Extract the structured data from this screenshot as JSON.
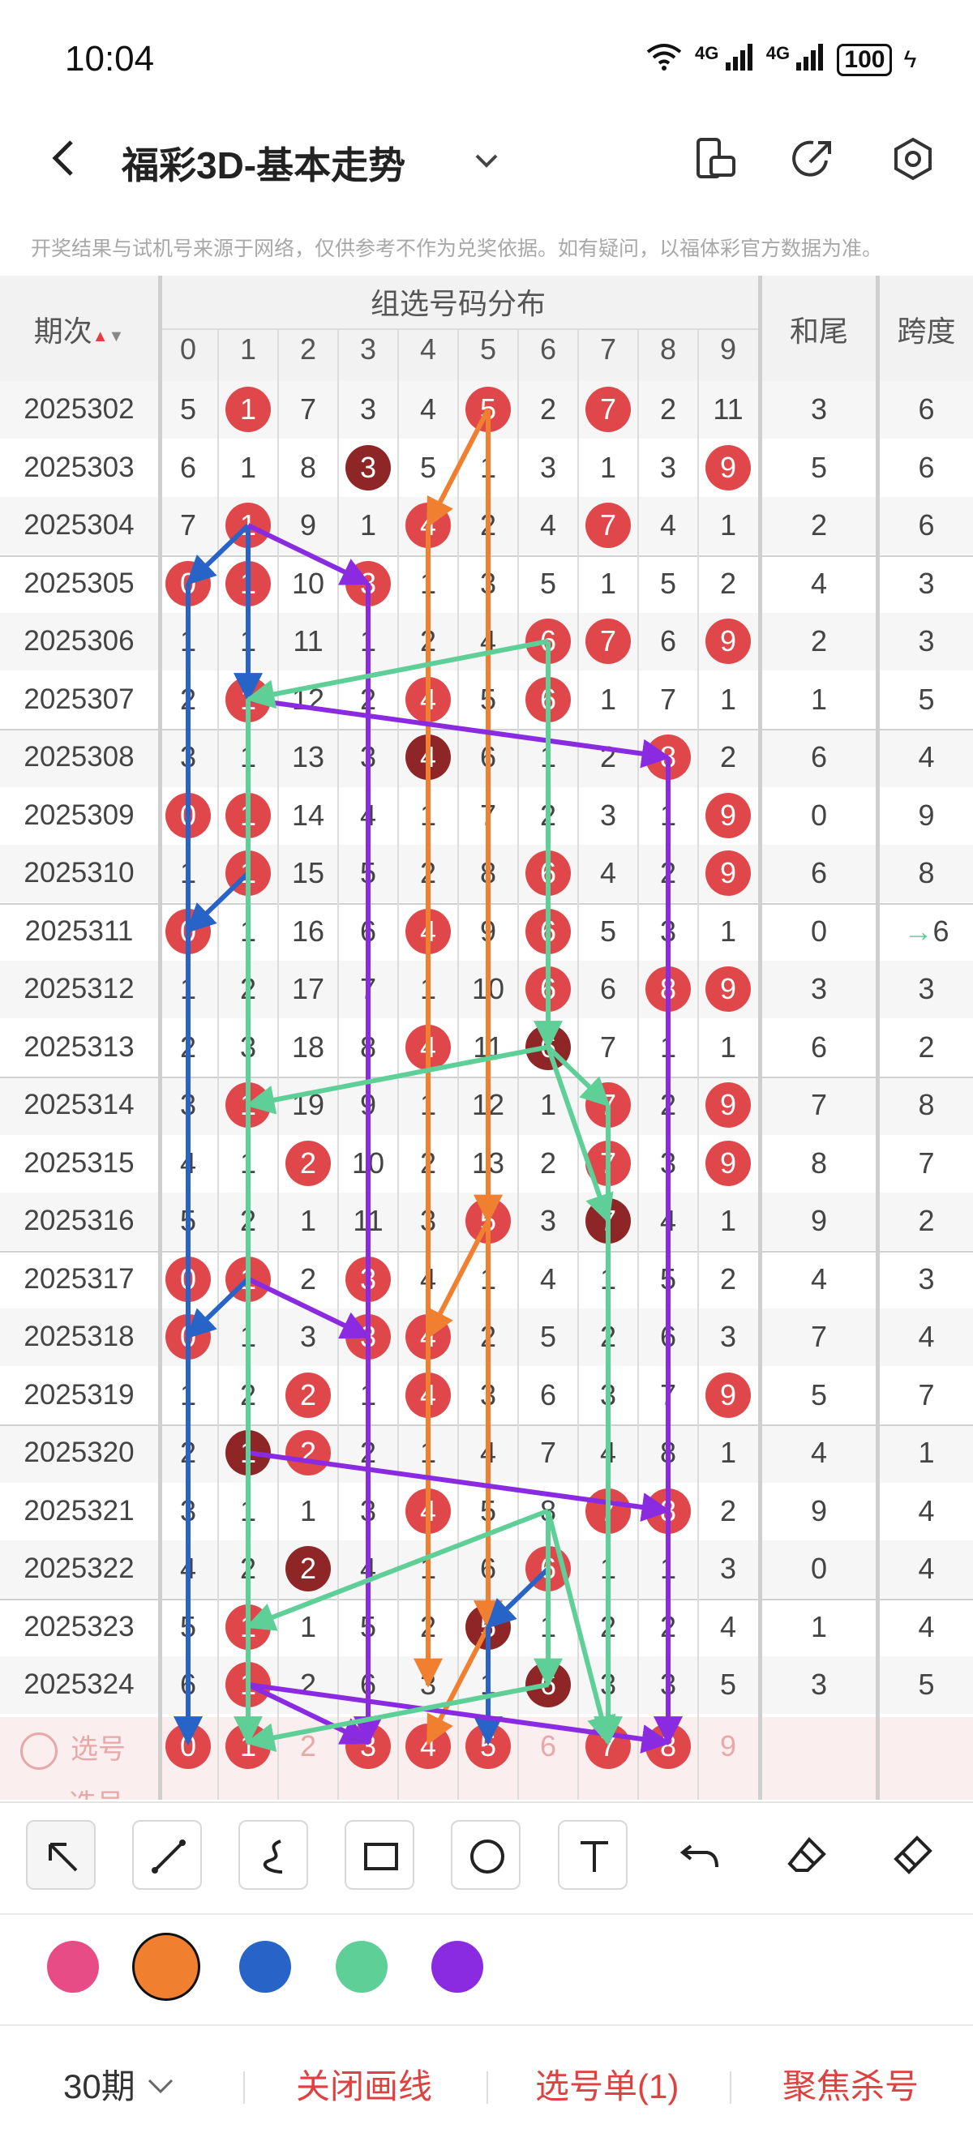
{
  "status": {
    "time": "10:04",
    "network": "4G",
    "battery": "100"
  },
  "header": {
    "title": "福彩3D-基本走势"
  },
  "disclaimer": "开奖结果与试机号来源于网络，仅供参考不作为兑奖依据。如有疑问，以福体彩官方数据为准。",
  "table": {
    "col_issue": "期次",
    "group_title": "组选号码分布",
    "digits": [
      "0",
      "1",
      "2",
      "3",
      "4",
      "5",
      "6",
      "7",
      "8",
      "9"
    ],
    "col_sum": "和尾",
    "col_span": "跨度",
    "rows": [
      {
        "issue": "2025302",
        "cells": [
          "5",
          "1",
          "7",
          "3",
          "4",
          "5",
          "2",
          "7",
          "2",
          "11"
        ],
        "hits": [
          1,
          5,
          7
        ],
        "dark": [],
        "sum": "3",
        "span": "6"
      },
      {
        "issue": "2025303",
        "cells": [
          "6",
          "1",
          "8",
          "3",
          "5",
          "1",
          "3",
          "1",
          "3",
          "9"
        ],
        "hits": [
          9
        ],
        "dark": [
          3
        ],
        "sum": "5",
        "span": "6"
      },
      {
        "issue": "2025304",
        "cells": [
          "7",
          "1",
          "9",
          "1",
          "4",
          "2",
          "4",
          "7",
          "4",
          "1"
        ],
        "hits": [
          1,
          4,
          7
        ],
        "dark": [],
        "sum": "2",
        "span": "6"
      },
      {
        "issue": "2025305",
        "cells": [
          "0",
          "1",
          "10",
          "3",
          "1",
          "3",
          "5",
          "1",
          "5",
          "2"
        ],
        "hits": [
          0,
          1,
          3
        ],
        "dark": [],
        "sum": "4",
        "span": "3"
      },
      {
        "issue": "2025306",
        "cells": [
          "1",
          "1",
          "11",
          "1",
          "2",
          "4",
          "6",
          "7",
          "6",
          "9"
        ],
        "hits": [
          6,
          7,
          9
        ],
        "dark": [],
        "sum": "2",
        "span": "3"
      },
      {
        "issue": "2025307",
        "cells": [
          "2",
          "1",
          "12",
          "2",
          "4",
          "5",
          "6",
          "1",
          "7",
          "1"
        ],
        "hits": [
          1,
          4,
          6
        ],
        "dark": [],
        "sum": "1",
        "span": "5"
      },
      {
        "issue": "2025308",
        "cells": [
          "3",
          "1",
          "13",
          "3",
          "4",
          "6",
          "1",
          "2",
          "8",
          "2"
        ],
        "hits": [
          8
        ],
        "dark": [
          4
        ],
        "sum": "6",
        "span": "4"
      },
      {
        "issue": "2025309",
        "cells": [
          "0",
          "1",
          "14",
          "4",
          "1",
          "7",
          "2",
          "3",
          "1",
          "9"
        ],
        "hits": [
          0,
          1,
          9
        ],
        "dark": [],
        "sum": "0",
        "span": "9"
      },
      {
        "issue": "2025310",
        "cells": [
          "1",
          "1",
          "15",
          "5",
          "2",
          "8",
          "6",
          "4",
          "2",
          "9"
        ],
        "hits": [
          1,
          6,
          9
        ],
        "dark": [],
        "sum": "6",
        "span": "8"
      },
      {
        "issue": "2025311",
        "cells": [
          "0",
          "1",
          "16",
          "6",
          "4",
          "9",
          "6",
          "5",
          "3",
          "1"
        ],
        "hits": [
          0,
          4,
          6
        ],
        "dark": [],
        "sum": "0",
        "span": "6"
      },
      {
        "issue": "2025312",
        "cells": [
          "1",
          "2",
          "17",
          "7",
          "1",
          "10",
          "6",
          "6",
          "8",
          "9"
        ],
        "hits": [
          6,
          8,
          9
        ],
        "dark": [],
        "sum": "3",
        "span": "3"
      },
      {
        "issue": "2025313",
        "cells": [
          "2",
          "3",
          "18",
          "8",
          "4",
          "11",
          "6",
          "7",
          "1",
          "1"
        ],
        "hits": [
          4
        ],
        "dark": [
          6
        ],
        "sum": "6",
        "span": "2"
      },
      {
        "issue": "2025314",
        "cells": [
          "3",
          "1",
          "19",
          "9",
          "1",
          "12",
          "1",
          "7",
          "2",
          "9"
        ],
        "hits": [
          1,
          7,
          9
        ],
        "dark": [],
        "sum": "7",
        "span": "8"
      },
      {
        "issue": "2025315",
        "cells": [
          "4",
          "1",
          "2",
          "10",
          "2",
          "13",
          "2",
          "7",
          "3",
          "9"
        ],
        "hits": [
          2,
          7,
          9
        ],
        "dark": [],
        "sum": "8",
        "span": "7"
      },
      {
        "issue": "2025316",
        "cells": [
          "5",
          "2",
          "1",
          "11",
          "3",
          "5",
          "3",
          "7",
          "4",
          "1"
        ],
        "hits": [
          5
        ],
        "dark": [
          7
        ],
        "sum": "9",
        "span": "2"
      },
      {
        "issue": "2025317",
        "cells": [
          "0",
          "1",
          "2",
          "3",
          "4",
          "1",
          "4",
          "1",
          "5",
          "2"
        ],
        "hits": [
          0,
          1,
          3
        ],
        "dark": [],
        "sum": "4",
        "span": "3"
      },
      {
        "issue": "2025318",
        "cells": [
          "0",
          "1",
          "3",
          "3",
          "4",
          "2",
          "5",
          "2",
          "6",
          "3"
        ],
        "hits": [
          0,
          3,
          4
        ],
        "dark": [],
        "sum": "7",
        "span": "4"
      },
      {
        "issue": "2025319",
        "cells": [
          "1",
          "2",
          "2",
          "1",
          "4",
          "3",
          "6",
          "3",
          "7",
          "9"
        ],
        "hits": [
          2,
          4,
          9
        ],
        "dark": [],
        "sum": "5",
        "span": "7"
      },
      {
        "issue": "2025320",
        "cells": [
          "2",
          "1",
          "2",
          "2",
          "1",
          "4",
          "7",
          "4",
          "8",
          "1"
        ],
        "hits": [
          2
        ],
        "dark": [
          1
        ],
        "sum": "4",
        "span": "1"
      },
      {
        "issue": "2025321",
        "cells": [
          "3",
          "1",
          "1",
          "3",
          "4",
          "5",
          "8",
          "7",
          "8",
          "2"
        ],
        "hits": [
          4,
          7,
          8
        ],
        "dark": [],
        "sum": "9",
        "span": "4"
      },
      {
        "issue": "2025322",
        "cells": [
          "4",
          "2",
          "2",
          "4",
          "1",
          "6",
          "6",
          "1",
          "1",
          "3"
        ],
        "hits": [
          6
        ],
        "dark": [
          2
        ],
        "sum": "0",
        "span": "4"
      },
      {
        "issue": "2025323",
        "cells": [
          "5",
          "1",
          "1",
          "5",
          "2",
          "5",
          "1",
          "2",
          "2",
          "4"
        ],
        "hits": [
          1
        ],
        "dark": [
          5
        ],
        "sum": "1",
        "span": "4"
      },
      {
        "issue": "2025324",
        "cells": [
          "6",
          "1",
          "2",
          "6",
          "3",
          "1",
          "6",
          "3",
          "3",
          "5"
        ],
        "hits": [
          1
        ],
        "dark": [
          6
        ],
        "sum": "3",
        "span": "5"
      }
    ],
    "pick_label": "选号",
    "pick_cells": [
      "0",
      "1",
      "2",
      "3",
      "4",
      "5",
      "6",
      "7",
      "8",
      "9"
    ],
    "pick_selected": [
      0,
      1,
      3,
      4,
      5,
      7,
      8
    ],
    "span_marker": "→"
  },
  "drawing_colors": {
    "pink": "#e84c86",
    "orange": "#f08030",
    "blue": "#2863c8",
    "green": "#5fcf98",
    "purple": "#8a2be2",
    "ball_red": "#e0474a",
    "ball_dark": "#8e2526"
  },
  "tools": [
    "arrow-tool-icon",
    "line-tool-icon",
    "curve-tool-icon",
    "rect-tool-icon",
    "circle-tool-icon",
    "text-tool-icon",
    "undo-icon",
    "eraser-icon",
    "clear-icon"
  ],
  "bottom": {
    "period": "30期",
    "close_draw": "关闭画线",
    "pick_list": "选号单(1)",
    "focus_kill": "聚焦杀号"
  }
}
